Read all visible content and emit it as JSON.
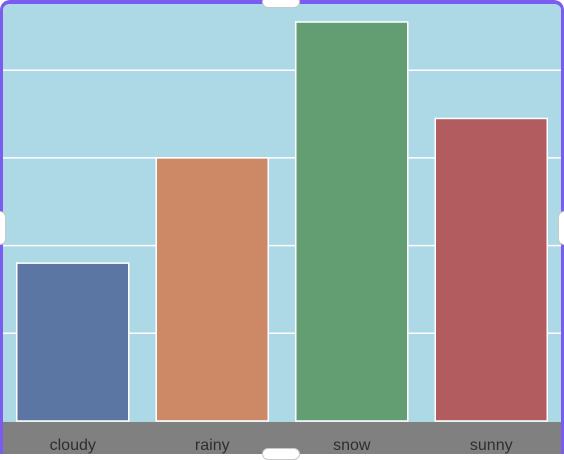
{
  "chart_data": {
    "type": "bar",
    "categories": [
      "cloudy",
      "rainy",
      "snow",
      "sunny"
    ],
    "values": [
      18,
      30,
      45.5,
      34.5
    ],
    "ylim": [
      0,
      45.5
    ],
    "grid": true,
    "colors": {
      "plot_background": "#add8e6",
      "gridline": "#ffffff",
      "axis_band": "#808080",
      "bars": [
        "#5b76a3",
        "#cd8966",
        "#629e72",
        "#b35c60"
      ],
      "frame": "#7b5cf0"
    }
  }
}
